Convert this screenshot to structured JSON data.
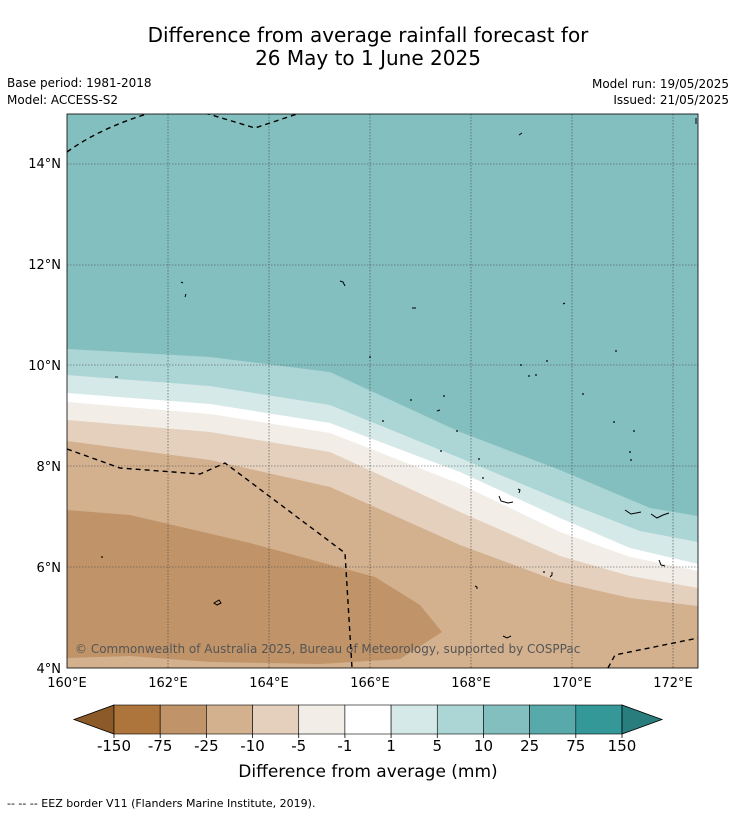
{
  "header": {
    "title_line1": "Difference from average rainfall forecast for",
    "title_line2": "26 May to 1 June 2025",
    "base_period": "Base period: 1981-2018",
    "model": "Model: ACCESS-S2",
    "model_run": "Model run: 19/05/2025",
    "issued": "Issued: 21/05/2025"
  },
  "map": {
    "lat_labels": [
      "14°N",
      "12°N",
      "10°N",
      "8°N",
      "6°N",
      "4°N"
    ],
    "lon_labels": [
      "160°E",
      "162°E",
      "164°E",
      "166°E",
      "168°E",
      "170°E",
      "172°E"
    ],
    "copyright": "© Commonwealth of Australia 2025, Bureau of Meteorology, supported by COSPPac"
  },
  "colorbar": {
    "ticks": [
      "-150",
      "-75",
      "-25",
      "-10",
      "-5",
      "-1",
      "1",
      "5",
      "10",
      "25",
      "75",
      "150"
    ],
    "colors": [
      "#8c5a29",
      "#ad743b",
      "#c09468",
      "#d3b08e",
      "#e4d0bd",
      "#f2ede6",
      "#ffffff",
      "#d5e9e8",
      "#acd5d5",
      "#84bfbf",
      "#58aaaa",
      "#359898",
      "#297d7d"
    ],
    "label": "Difference from average (mm)"
  },
  "footnote": "-- -- -- EEZ border V11 (Flanders Marine Institute, 2019)."
}
